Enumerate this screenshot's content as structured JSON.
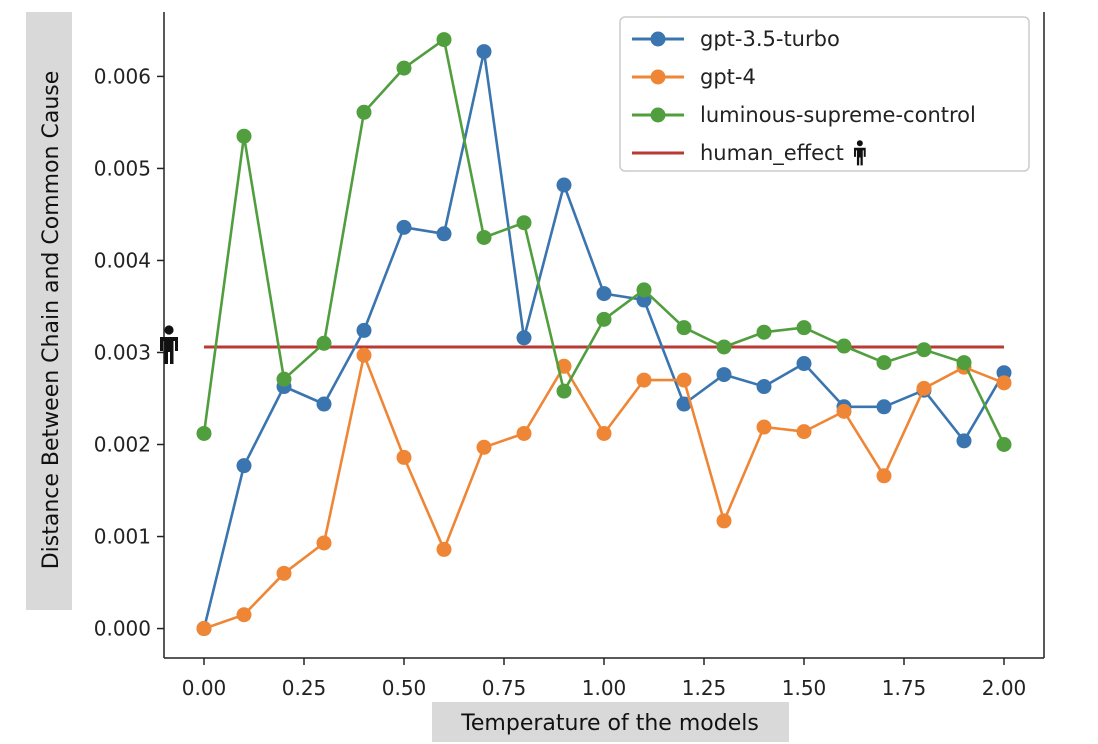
{
  "chart_data": {
    "type": "line",
    "xlabel": "Temperature of the models",
    "ylabel": "Distance Between Chain and Common Cause",
    "xlim": [
      -0.1,
      2.1
    ],
    "ylim": [
      -0.00032,
      0.0067
    ],
    "xticks": [
      0.0,
      0.25,
      0.5,
      0.75,
      1.0,
      1.25,
      1.5,
      1.75,
      2.0
    ],
    "xtick_labels": [
      "0.00",
      "0.25",
      "0.50",
      "0.75",
      "1.00",
      "1.25",
      "1.50",
      "1.75",
      "2.00"
    ],
    "yticks": [
      0.0,
      0.001,
      0.002,
      0.003,
      0.004,
      0.005,
      0.006
    ],
    "ytick_labels": [
      "0.000",
      "0.001",
      "0.002",
      "0.003",
      "0.004",
      "0.005",
      "0.006"
    ],
    "x": [
      0.0,
      0.1,
      0.2,
      0.3,
      0.4,
      0.5,
      0.6,
      0.7,
      0.8,
      0.9,
      1.0,
      1.1,
      1.2,
      1.3,
      1.4,
      1.5,
      1.6,
      1.7,
      1.8,
      1.9,
      2.0
    ],
    "series": [
      {
        "name": "gpt-3.5-turbo",
        "color": "#3b75af",
        "values": [
          0.0,
          0.00177,
          0.00263,
          0.00244,
          0.00324,
          0.00436,
          0.00429,
          0.00627,
          0.00316,
          0.00482,
          0.00364,
          0.00357,
          0.00244,
          0.00276,
          0.00263,
          0.00288,
          0.00241,
          0.00241,
          0.00259,
          0.00204,
          0.00278
        ]
      },
      {
        "name": "gpt-4",
        "color": "#ef8636",
        "values": [
          0.0,
          0.00015,
          0.0006,
          0.00093,
          0.00297,
          0.00186,
          0.00086,
          0.00197,
          0.00212,
          0.00285,
          0.00212,
          0.0027,
          0.0027,
          0.00117,
          0.00219,
          0.00214,
          0.00236,
          0.00166,
          0.00261,
          0.00284,
          0.00267
        ]
      },
      {
        "name": "luminous-supreme-control",
        "color": "#519e3e",
        "values": [
          0.00212,
          0.00535,
          0.00271,
          0.0031,
          0.00561,
          0.00609,
          0.0064,
          0.00425,
          0.00441,
          0.00258,
          0.00336,
          0.00368,
          0.00327,
          0.00306,
          0.00322,
          0.00327,
          0.00307,
          0.00289,
          0.00303,
          0.00289,
          0.002
        ]
      }
    ],
    "reference_line": {
      "name": "human_effect",
      "color": "#b83a33",
      "value": 0.00306,
      "x_range": [
        0.0,
        2.0
      ],
      "marker_icon": "person-icon"
    },
    "legend": {
      "placement": "top-right",
      "entries": [
        "gpt-3.5-turbo",
        "gpt-4",
        "luminous-supreme-control",
        "human_effect"
      ]
    },
    "grid": false
  }
}
